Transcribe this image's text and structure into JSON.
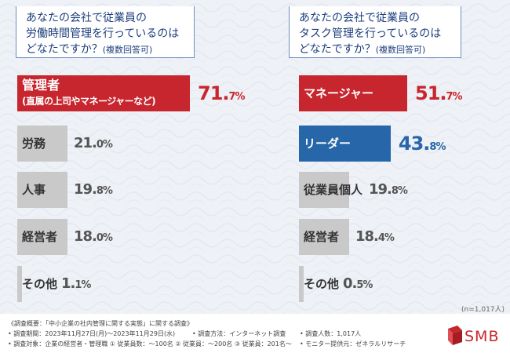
{
  "chart_data": [
    {
      "type": "bar",
      "title": "あなたの会社で従業員の労働時間管理を行っているのはどなたですか？(複数回答可)",
      "title_lines": [
        "あなたの会社で従業員の",
        "労働時間管理を行っているのは",
        "どなたですか？"
      ],
      "title_note": "(複数回答可)",
      "categories": [
        "管理者(直属の上司やマネージャーなど)",
        "労務",
        "人事",
        "経営者",
        "その他"
      ],
      "category_lines": [
        [
          "管理者",
          "(直属の上司やマネージャーなど)"
        ],
        [
          "労務"
        ],
        [
          "人事"
        ],
        [
          "経営者"
        ],
        [
          "その他"
        ]
      ],
      "values": [
        71.7,
        21.0,
        19.8,
        18.0,
        1.1
      ],
      "value_labels": [
        [
          "71.",
          "7%"
        ],
        [
          "21.",
          "0%"
        ],
        [
          "19.",
          "8%"
        ],
        [
          "18.",
          "0%"
        ],
        [
          "1.",
          "1%"
        ]
      ],
      "highlight": [
        0
      ],
      "xlim": [
        0,
        100
      ]
    },
    {
      "type": "bar",
      "title": "あなたの会社で従業員のタスク管理を行っているのはどなたですか？(複数回答可)",
      "title_lines": [
        "あなたの会社で従業員の",
        "タスク管理を行っているのは",
        "どなたですか？"
      ],
      "title_note": "(複数回答可)",
      "categories": [
        "マネージャー",
        "リーダー",
        "従業員個人",
        "経営者",
        "その他"
      ],
      "category_lines": [
        [
          "マネージャー"
        ],
        [
          "リーダー"
        ],
        [
          "従業員個人"
        ],
        [
          "経営者"
        ],
        [
          "その他"
        ]
      ],
      "values": [
        51.7,
        43.8,
        19.8,
        18.4,
        0.5
      ],
      "value_labels": [
        [
          "51.",
          "7%"
        ],
        [
          "43.",
          "8%"
        ],
        [
          "19.",
          "8%"
        ],
        [
          "18.",
          "4%"
        ],
        [
          "0.",
          "5%"
        ]
      ],
      "highlight": [
        0,
        1
      ],
      "xlim": [
        0,
        100
      ]
    }
  ],
  "sample_note": "(n=1,017人)",
  "footnotes": {
    "line1": "《調査概要：「中小企業の社内管理に関する実態」に関する調査》",
    "line2a": "• 調査期間：2023年11月27日(月)〜2023年11月29日(水)",
    "line2b": "• 調査方法：インターネット調査",
    "line2c": "• 調査人数：1,017人",
    "line3a": "• 調査対象：企業の経営者・管理職 ① 従業員数：〜100名 ② 従業員：〜200名 ③ 従業員：201名〜",
    "line3b": "• モニター提供元：ゼネラルリサーチ"
  },
  "logo_text": "SMB",
  "colors": {
    "highlight_red": "#c8262e",
    "highlight_blue": "#2766a8",
    "bar_gray": "#c9c9c9",
    "title_blue": "#1c3e7c"
  }
}
